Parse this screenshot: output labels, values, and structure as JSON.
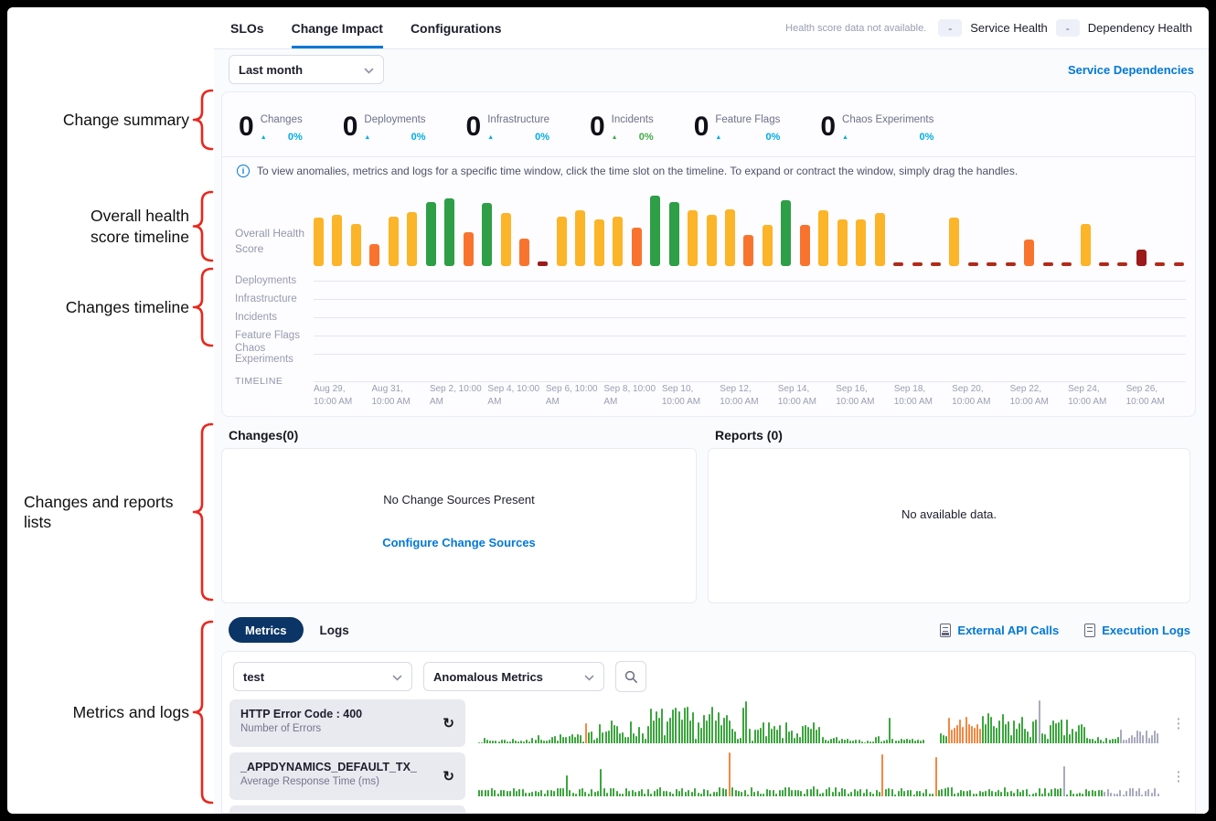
{
  "header": {
    "tabs": [
      {
        "label": "SLOs",
        "active": false
      },
      {
        "label": "Change Impact",
        "active": true
      },
      {
        "label": "Configurations",
        "active": false
      }
    ],
    "health_note": "Health score data not available.",
    "health_badges": [
      {
        "value": "-",
        "label": "Service Health"
      },
      {
        "value": "-",
        "label": "Dependency Health"
      }
    ]
  },
  "toolbar": {
    "time_range": "Last month",
    "service_dependencies": "Service Dependencies"
  },
  "summary": {
    "items": [
      {
        "value": "0",
        "label": "Changes",
        "percent": "0%",
        "trend": "up",
        "trend_color": "#00ade4"
      },
      {
        "value": "0",
        "label": "Deployments",
        "percent": "0%",
        "trend": "up",
        "trend_color": "#00ade4"
      },
      {
        "value": "0",
        "label": "Infrastructure",
        "percent": "0%",
        "trend": "up",
        "trend_color": "#00ade4"
      },
      {
        "value": "0",
        "label": "Incidents",
        "percent": "0%",
        "trend": "up",
        "trend_color": "#42ab45"
      },
      {
        "value": "0",
        "label": "Feature Flags",
        "percent": "0%",
        "trend": "up",
        "trend_color": "#00ade4"
      },
      {
        "value": "0",
        "label": "Chaos Experiments",
        "percent": "0%",
        "trend": "up",
        "trend_color": "#00ade4"
      }
    ]
  },
  "info_banner": {
    "text": "To view anomalies, metrics and logs for a specific time window, click the time slot on the timeline. To expand or contract the window, simply drag the handles."
  },
  "timeline": {
    "score_label": "Overall Health Score",
    "rows": [
      "Deployments",
      "Infrastructure",
      "Incidents",
      "Feature Flags",
      "Chaos Experiments"
    ],
    "axis_label": "TIMELINE",
    "dates": [
      "Aug 29, 10:00 AM",
      "Aug 31, 10:00 AM",
      "Sep 2, 10:00 AM",
      "Sep 4, 10:00 AM",
      "Sep 6, 10:00 AM",
      "Sep 8, 10:00 AM",
      "Sep 10, 10:00 AM",
      "Sep 12, 10:00 AM",
      "Sep 14, 10:00 AM",
      "Sep 16, 10:00 AM",
      "Sep 18, 10:00 AM",
      "Sep 20, 10:00 AM",
      "Sep 22, 10:00 AM",
      "Sep 24, 10:00 AM",
      "Sep 26, 10:00 AM"
    ]
  },
  "changes_panel": {
    "title": "Changes(0)",
    "empty_title": "No Change Sources Present",
    "action": "Configure Change Sources"
  },
  "reports_panel": {
    "title": "Reports (0)",
    "empty_text": "No available data."
  },
  "metrics_section": {
    "tabs": [
      {
        "label": "Metrics",
        "active": true
      },
      {
        "label": "Logs",
        "active": false
      }
    ],
    "links": [
      {
        "label": "External API Calls",
        "icon": "external-api-calls-icon"
      },
      {
        "label": "Execution Logs",
        "icon": "execution-logs-icon"
      }
    ],
    "service_filter": "test",
    "metric_filter": "Anomalous Metrics",
    "rows": [
      {
        "title": "HTTP Error Code : 400",
        "subtitle": "Number of Errors"
      },
      {
        "title": "_APPDYNAMICS_DEFAULT_TX_",
        "subtitle": "Average Response Time (ms)"
      }
    ]
  },
  "annotations": [
    "Change summary",
    "Overall health score timeline",
    "Changes timeline",
    "Changes and reports lists",
    "Metrics and logs"
  ],
  "colors": {
    "accent_blue": "#0278d5",
    "cyan": "#00ade4",
    "green": "#42ab45",
    "bar_yellow": "#fcb428",
    "bar_green": "#2e9e47",
    "bar_orange": "#f8742e",
    "bar_red": "#b02a1a",
    "bar_darkred": "#9c1a1a",
    "spark_green": "#3da53f",
    "spark_orange": "#f58742",
    "spark_gray": "#a9aabe",
    "pill_navy": "#0a3566",
    "annotation_red": "#e8281e"
  },
  "chart_data": [
    {
      "type": "bar",
      "title": "Overall Health Score timeline",
      "x_start": "Aug 29, 10:00 AM",
      "x_end": "Sep 26, 10:00 AM",
      "note": "encoded as color letter + height percent; Y=yellow moderate, G=green good, O=orange low, r=red no-data dash, R=dark red critical",
      "bars": [
        "Y66",
        "Y70",
        "Y58",
        "O30",
        "Y68",
        "Y74",
        "G88",
        "G92",
        "O46",
        "G86",
        "Y72",
        "O38",
        "R6",
        "Y68",
        "Y76",
        "Y64",
        "Y68",
        "O52",
        "G96",
        "G88",
        "Y76",
        "Y70",
        "Y78",
        "O42",
        "Y56",
        "G90",
        "O56",
        "Y76",
        "Y64",
        "Y64",
        "Y72",
        "r5",
        "r5",
        "r5",
        "Y66",
        "r5",
        "r5",
        "r5",
        "O36",
        "r5",
        "r5",
        "Y58",
        "r5",
        "r5",
        "R22",
        "r5",
        "r5"
      ]
    },
    {
      "type": "bar",
      "title": "HTTP Error Code : 400 — Number of Errors",
      "seed": 7,
      "segments": [
        {
          "count": 20,
          "min": 2,
          "max": 12,
          "color": "spark_green"
        },
        {
          "count": 18,
          "min": 4,
          "max": 22,
          "color": "spark_green"
        },
        {
          "count": 1,
          "min": 46,
          "max": 46,
          "color": "spark_orange"
        },
        {
          "count": 22,
          "min": 8,
          "max": 55,
          "color": "spark_green"
        },
        {
          "count": 34,
          "min": 10,
          "max": 85,
          "color": "spark_green"
        },
        {
          "count": 1,
          "min": 95,
          "max": 95,
          "color": "spark_green"
        },
        {
          "count": 26,
          "min": 6,
          "max": 48,
          "color": "spark_green"
        },
        {
          "count": 24,
          "min": 3,
          "max": 16,
          "color": "spark_green"
        },
        {
          "count": 1,
          "min": 58,
          "max": 58,
          "color": "spark_green"
        },
        {
          "count": 12,
          "min": 3,
          "max": 12,
          "color": "spark_green"
        },
        {
          "count": 5,
          "min": 0,
          "max": 0,
          "color": "spark_green"
        },
        {
          "count": 3,
          "min": 12,
          "max": 26,
          "color": "spark_green"
        },
        {
          "count": 12,
          "min": 22,
          "max": 62,
          "color": "spark_orange"
        },
        {
          "count": 20,
          "min": 10,
          "max": 70,
          "color": "spark_green"
        },
        {
          "count": 1,
          "min": 98,
          "max": 98,
          "color": "spark_gray"
        },
        {
          "count": 16,
          "min": 8,
          "max": 55,
          "color": "spark_green"
        },
        {
          "count": 12,
          "min": 3,
          "max": 16,
          "color": "spark_green"
        },
        {
          "count": 14,
          "min": 5,
          "max": 32,
          "color": "spark_gray"
        }
      ]
    },
    {
      "type": "bar",
      "title": "_APPDYNAMICS_DEFAULT_TX_ — Average Response Time (ms)",
      "seed": 11,
      "segments": [
        {
          "count": 28,
          "min": 5,
          "max": 22,
          "color": "spark_green"
        },
        {
          "count": 1,
          "min": 48,
          "max": 48,
          "color": "spark_green"
        },
        {
          "count": 10,
          "min": 5,
          "max": 20,
          "color": "spark_green"
        },
        {
          "count": 1,
          "min": 62,
          "max": 62,
          "color": "spark_green"
        },
        {
          "count": 40,
          "min": 5,
          "max": 22,
          "color": "spark_green"
        },
        {
          "count": 1,
          "min": 100,
          "max": 100,
          "color": "spark_orange"
        },
        {
          "count": 48,
          "min": 5,
          "max": 22,
          "color": "spark_green"
        },
        {
          "count": 1,
          "min": 95,
          "max": 95,
          "color": "spark_orange"
        },
        {
          "count": 16,
          "min": 5,
          "max": 20,
          "color": "spark_green"
        },
        {
          "count": 1,
          "min": 90,
          "max": 90,
          "color": "spark_orange"
        },
        {
          "count": 40,
          "min": 5,
          "max": 22,
          "color": "spark_green"
        },
        {
          "count": 1,
          "min": 68,
          "max": 68,
          "color": "spark_gray"
        },
        {
          "count": 12,
          "min": 4,
          "max": 18,
          "color": "spark_green"
        },
        {
          "count": 18,
          "min": 4,
          "max": 20,
          "color": "spark_gray"
        }
      ]
    }
  ]
}
